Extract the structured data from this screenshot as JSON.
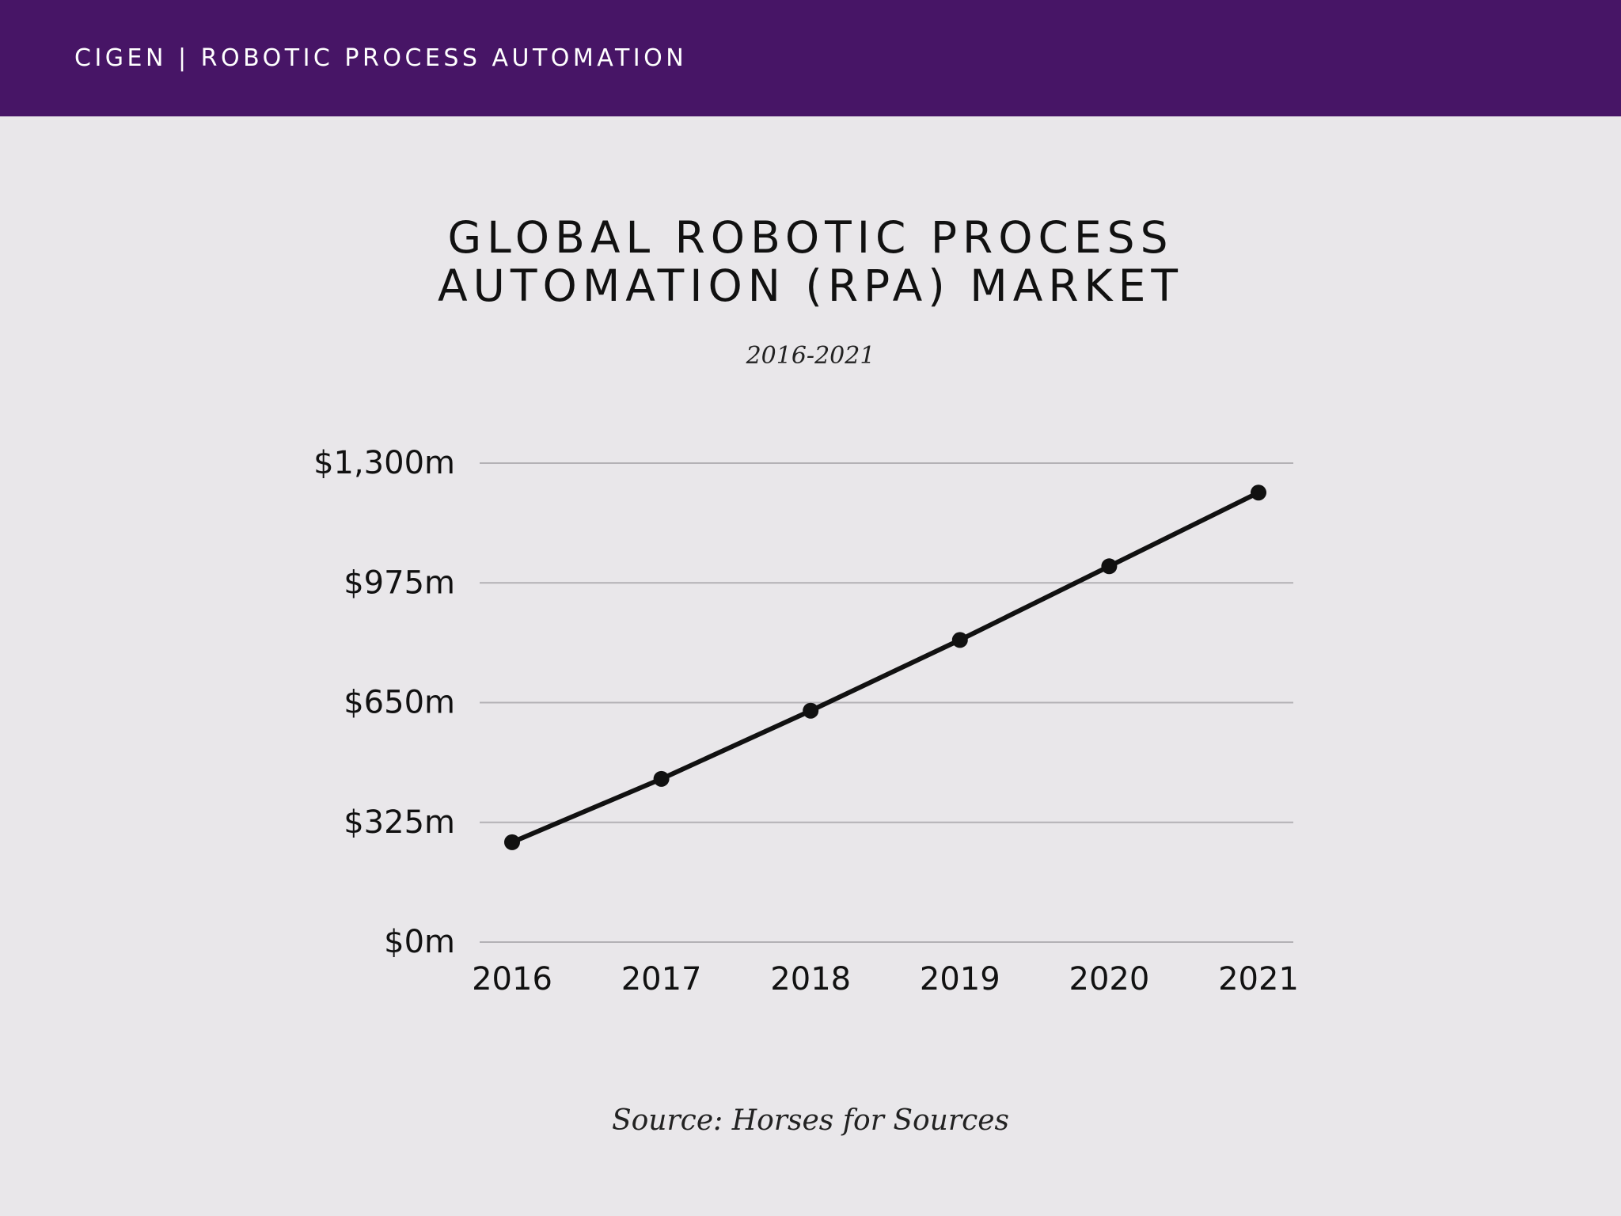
{
  "header": {
    "text": "CIGEN | ROBOTIC PROCESS AUTOMATION"
  },
  "colors": {
    "header_background": "#471566",
    "page_background": "#e9e7ea",
    "line": "#111111",
    "grid": "#b3b1b5"
  },
  "chart_data": {
    "type": "line",
    "title_lines": [
      "GLOBAL ROBOTIC PROCESS",
      "AUTOMATION (RPA) MARKET"
    ],
    "subtitle": "2016-2021",
    "xlabel": "",
    "ylabel": "",
    "categories": [
      "2016",
      "2017",
      "2018",
      "2019",
      "2020",
      "2021"
    ],
    "series": [
      {
        "values": [
          271,
          443,
          628,
          820,
          1020,
          1220
        ]
      }
    ],
    "ylim": [
      0,
      1300
    ],
    "y_ticks": [
      0,
      325,
      650,
      975,
      1300
    ],
    "y_tick_labels": [
      "$0m",
      "$325m",
      "$650m",
      "$975m",
      "$1,300m"
    ],
    "grid": true,
    "legend": "none"
  },
  "source": "Source: Horses for Sources"
}
